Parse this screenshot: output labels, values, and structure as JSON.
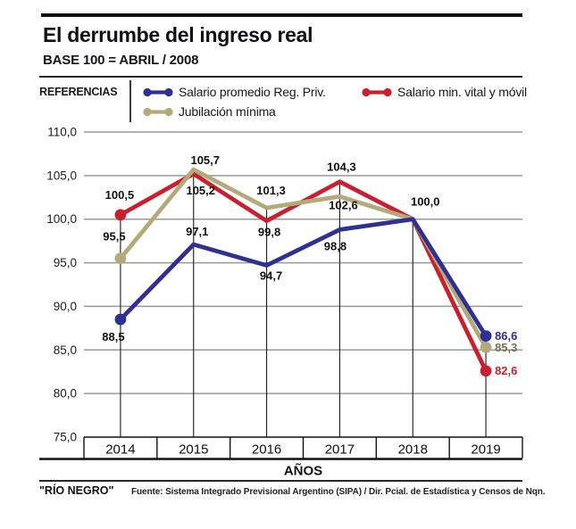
{
  "header": {
    "title": "El derrumbe del ingreso real",
    "subtitle": "BASE 100 = ABRIL / 2008"
  },
  "legend": {
    "heading": "REFERENCIAS"
  },
  "footer": {
    "brand": "\"RÍO NEGRO\"",
    "source": "Fuente: Sistema Integrado Previsional Argentino (SIPA) / Dir. Pcial. de Estadística y Censos de Nqn."
  },
  "chart_data": {
    "type": "line",
    "title": "El derrumbe del ingreso real",
    "subtitle": "BASE 100 = ABRIL / 2008",
    "xlabel": "AÑOS",
    "categories": [
      "2014",
      "2015",
      "2016",
      "2017",
      "2018",
      "2019"
    ],
    "ylim": [
      75,
      110
    ],
    "ytick_step": 5,
    "ytick_labels": [
      "75,0",
      "80,0",
      "85,0",
      "90,0",
      "95,0",
      "100,0",
      "105,0",
      "110,0"
    ],
    "grid": true,
    "legend_position": "top",
    "series": [
      {
        "name": "Salario promedio Reg. Priv.",
        "color": "#2e3192",
        "values": [
          88.5,
          97.1,
          94.7,
          98.8,
          100.0,
          86.6
        ],
        "labels": [
          "88,5",
          "97,1",
          "94,7",
          "98,8",
          "100,0",
          "86,6"
        ]
      },
      {
        "name": "Salario min. vital y móvil",
        "color": "#c8202e",
        "values": [
          100.5,
          105.2,
          99.8,
          104.3,
          100.0,
          82.6
        ],
        "labels": [
          "100,5",
          "105,2",
          "99,8",
          "104,3",
          null,
          "82,6"
        ]
      },
      {
        "name": "Jubilación mínima",
        "color": "#b3aa7c",
        "values": [
          95.5,
          105.7,
          101.3,
          102.6,
          100.0,
          85.3
        ],
        "labels": [
          "95,5",
          "105,7",
          "101,3",
          "102,6",
          null,
          "85,3"
        ]
      }
    ],
    "label_layout": [
      [
        [
          -8,
          24
        ],
        [
          4,
          -10
        ],
        [
          5,
          16
        ],
        [
          -5,
          23
        ],
        [
          14,
          -15
        ],
        [
          10,
          4.5
        ]
      ],
      [
        [
          -1,
          -18
        ],
        [
          8,
          23
        ],
        [
          3,
          17
        ],
        [
          2,
          -12
        ],
        null,
        [
          10,
          4.5
        ]
      ],
      [
        [
          -7,
          -20
        ],
        [
          13,
          -6
        ],
        [
          5,
          -15
        ],
        [
          4,
          14
        ],
        null,
        [
          10,
          4.5
        ]
      ]
    ],
    "end_label_colors": [
      "#2e3192",
      "#c8202e",
      "#77704e"
    ],
    "draw_order": [
      1,
      2,
      0
    ],
    "dots_at": "endpoints"
  }
}
